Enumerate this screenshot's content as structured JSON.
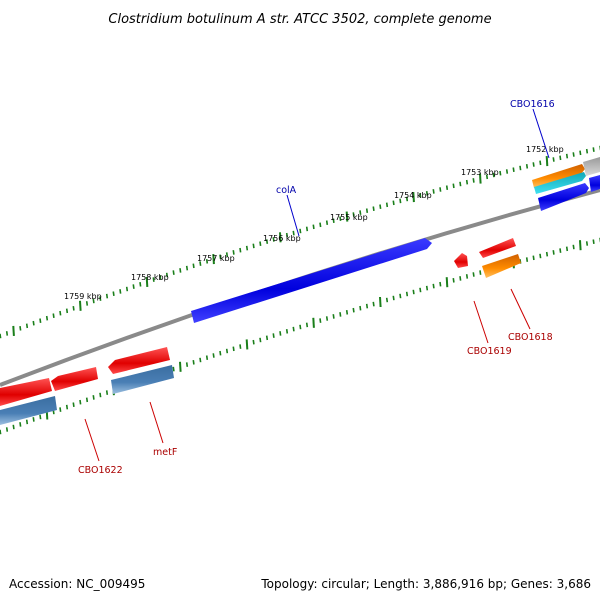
{
  "title": "Clostridium botulinum A str. ATCC 3502, complete genome",
  "footer": {
    "accession": "Accession: NC_009495",
    "summary": "Topology: circular; Length: 3,886,916 bp; Genes: 3,686"
  },
  "colors": {
    "tick": "#1a7f1a",
    "backbone": "#808080",
    "forward_gene": "#0000ee",
    "reverse_gene": "#ee1111",
    "reverse_gene_alt": "#4a7fb5",
    "orange_gene": "#ff8c00",
    "cyan_gene": "#20c8d8",
    "grey_gene": "#b0b0b0",
    "label_forward": "#0000aa",
    "label_reverse": "#aa0000"
  },
  "scale": {
    "ticks": [
      "1752 kbp",
      "1753 kbp",
      "1754 kbp",
      "1755 kbp",
      "1756 kbp",
      "1757 kbp",
      "1758 kbp",
      "1759 kbp"
    ]
  },
  "genes": [
    {
      "label": "CBO1616",
      "strand": "forward"
    },
    {
      "label": "colA",
      "strand": "forward"
    },
    {
      "label": "CBO1618",
      "strand": "reverse"
    },
    {
      "label": "CBO1619",
      "strand": "reverse"
    },
    {
      "label": "metF",
      "strand": "reverse"
    },
    {
      "label": "CBO1622",
      "strand": "reverse"
    }
  ]
}
